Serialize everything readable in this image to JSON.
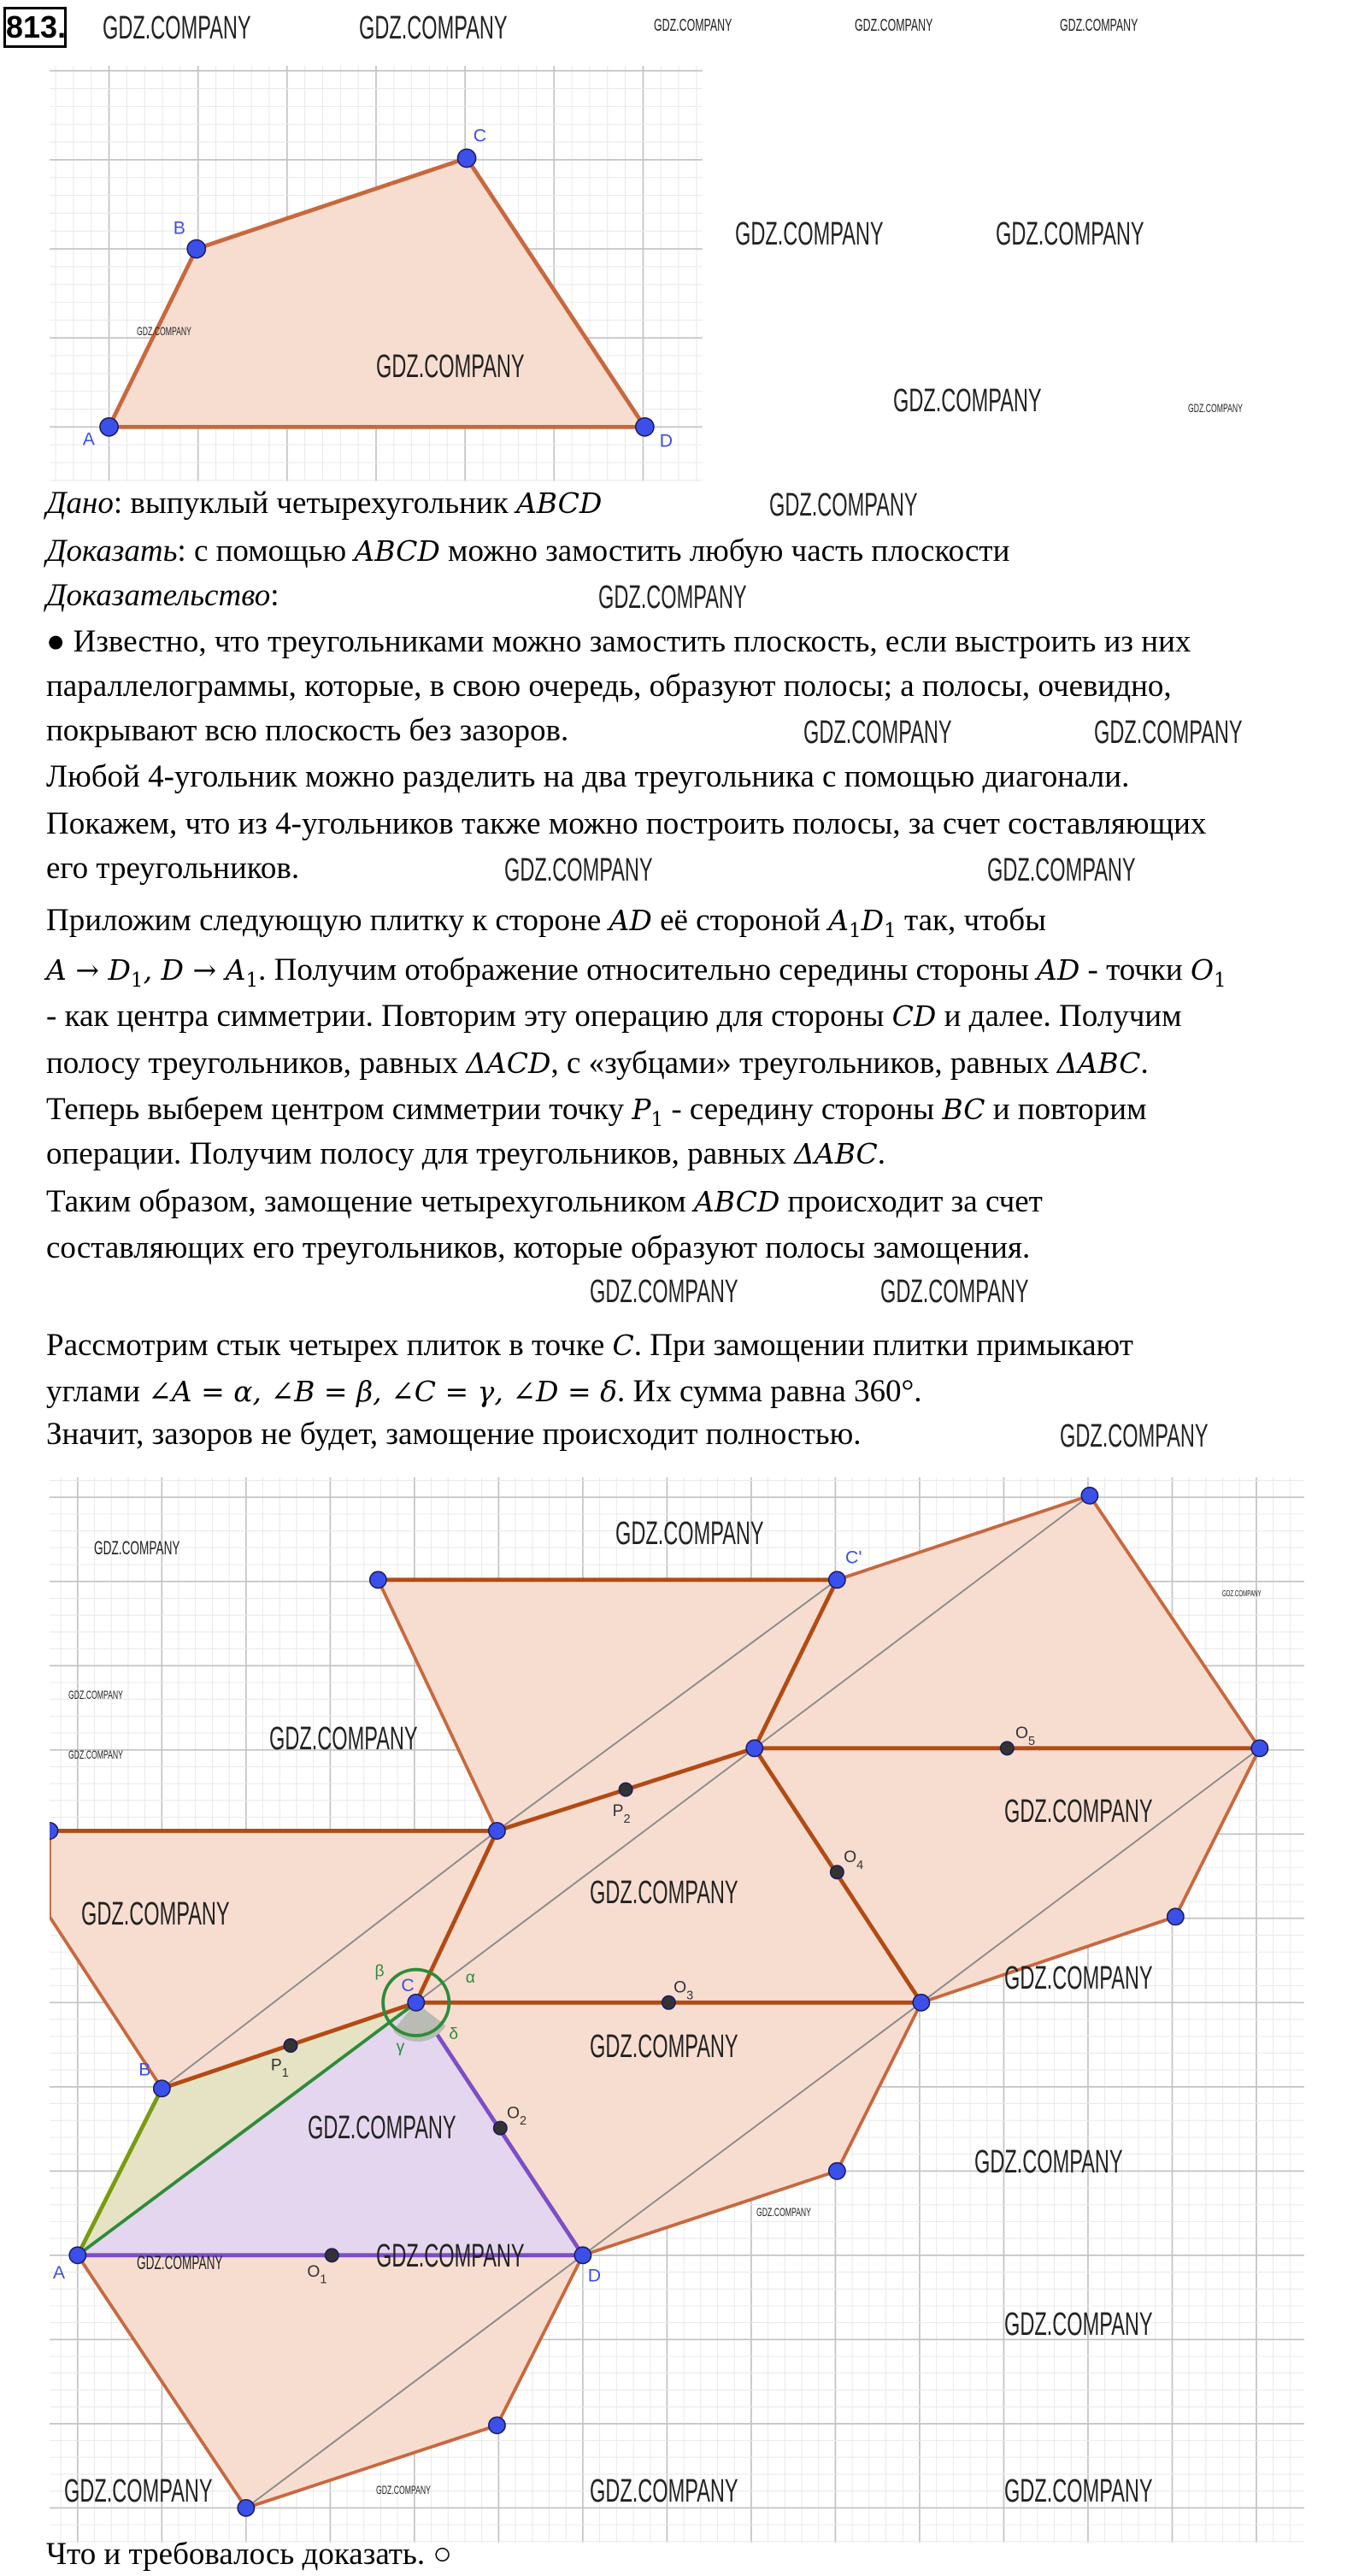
{
  "problem_number": "813.",
  "watermark": "GDZ.COMPANY",
  "colors": {
    "tile_fill": "#f7ddd0",
    "tile_stroke": "#c8683e",
    "dark_stroke": "#b34a14",
    "point": "#3b50e8",
    "midpoint": "#333333",
    "triangle_abc": "#e5e3c4",
    "triangle_acd": "#e4d6ee",
    "purple": "#7b4fc4",
    "green": "#2e8b3a",
    "olive": "#7a9a10",
    "grid_minor": "#e8e8e8",
    "grid_major": "#c4c4c4"
  },
  "figure_top": {
    "labels": {
      "A": "A",
      "B": "B",
      "C": "C",
      "D": "D"
    }
  },
  "figure_bottom": {
    "labels": {
      "A": "A",
      "B": "B",
      "C": "C",
      "D": "D",
      "C2": "C'",
      "P": "P",
      "O": "O",
      "sub1": "1",
      "sub2": "2",
      "sub3": "3",
      "sub4": "4",
      "sub5": "5"
    },
    "angles": {
      "alpha": "α",
      "beta": "β",
      "gamma": "γ",
      "delta": "δ"
    }
  },
  "text": {
    "lines": [
      [
        {
          "t": "Дано",
          "s": "i"
        },
        {
          "t": ": выпуклый четырехугольник "
        },
        {
          "t": "ABCD",
          "s": "m"
        }
      ],
      [
        {
          "t": "Доказать",
          "s": "i"
        },
        {
          "t": ": с помощью "
        },
        {
          "t": "ABCD",
          "s": "m"
        },
        {
          "t": " можно замостить любую часть плоскости"
        }
      ],
      [
        {
          "t": "Доказательство",
          "s": "i"
        },
        {
          "t": ":"
        }
      ],
      [
        {
          "t": "● Известно, что треугольниками можно замостить плоскость, если выстроить из них"
        }
      ],
      [
        {
          "t": "параллелограммы, которые, в свою очередь, образуют полосы; а полосы, очевидно,"
        }
      ],
      [
        {
          "t": "покрывают всю плоскость без зазоров."
        }
      ],
      [
        {
          "t": "Любой 4-угольник можно разделить на два треугольника с помощью диагонали."
        }
      ],
      [
        {
          "t": "Покажем, что из 4-угольников также можно построить полосы, за счет составляющих"
        }
      ],
      [
        {
          "t": "его треугольников."
        }
      ],
      [
        {
          "t": "Приложим следующую плитку к стороне "
        },
        {
          "t": "AD",
          "s": "m"
        },
        {
          "t": " её стороной "
        },
        {
          "t": "A",
          "s": "m"
        },
        {
          "t": "1",
          "s": "s"
        },
        {
          "t": "D",
          "s": "m"
        },
        {
          "t": "1",
          "s": "s"
        },
        {
          "t": " так, чтобы"
        }
      ],
      [
        {
          "t": "A → D",
          "s": "m"
        },
        {
          "t": "1",
          "s": "s"
        },
        {
          "t": ", D → A",
          "s": "m"
        },
        {
          "t": "1",
          "s": "s"
        },
        {
          "t": ". Получим отображение относительно середины стороны "
        },
        {
          "t": "AD",
          "s": "m"
        },
        {
          "t": " - точки "
        },
        {
          "t": "O",
          "s": "m"
        },
        {
          "t": "1",
          "s": "s"
        }
      ],
      [
        {
          "t": "- как центра симметрии. Повторим эту операцию для стороны "
        },
        {
          "t": "CD",
          "s": "m"
        },
        {
          "t": " и далее. Получим"
        }
      ],
      [
        {
          "t": "полосу треугольников, равных "
        },
        {
          "t": "ΔACD",
          "s": "m"
        },
        {
          "t": ", с «зубцами» треугольников, равных "
        },
        {
          "t": "ΔABC",
          "s": "m"
        },
        {
          "t": "."
        }
      ],
      [
        {
          "t": "Теперь выберем центром симметрии точку "
        },
        {
          "t": "P",
          "s": "m"
        },
        {
          "t": "1",
          "s": "s"
        },
        {
          "t": " - середину стороны "
        },
        {
          "t": "BC",
          "s": "m"
        },
        {
          "t": " и повторим"
        }
      ],
      [
        {
          "t": "операции. Получим полосу для треугольников, равных "
        },
        {
          "t": "ΔABC",
          "s": "m"
        },
        {
          "t": "."
        }
      ],
      [
        {
          "t": "Таким образом, замощение четырехугольником "
        },
        {
          "t": "ABCD",
          "s": "m"
        },
        {
          "t": " происходит за счет"
        }
      ],
      [
        {
          "t": "составляющих его треугольников, которые образуют полосы замощения."
        }
      ],
      [
        {
          "t": "Рассмотрим стык четырех плиток в точке "
        },
        {
          "t": "C",
          "s": "m"
        },
        {
          "t": ". При замощении плитки примыкают"
        }
      ],
      [
        {
          "t": "углами "
        },
        {
          "t": "∠A = α, ∠B = β, ∠C = γ, ∠D = δ",
          "s": "m"
        },
        {
          "t": ". Их сумма равна 360°."
        }
      ],
      [
        {
          "t": "Значит, зазоров не будет, замощение происходит полностью."
        }
      ],
      [
        {
          "t": "Что и требовалось доказать. ○"
        }
      ]
    ]
  }
}
